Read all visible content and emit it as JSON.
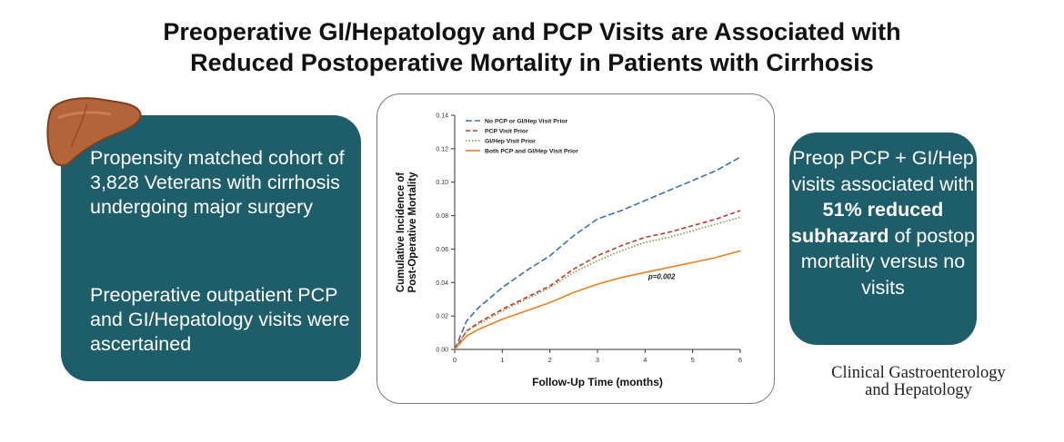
{
  "title": {
    "line1": "Preoperative GI/Hepatology and PCP Visits are Associated with",
    "line2": "Reduced Postoperative Mortality in Patients with Cirrhosis"
  },
  "left_card": {
    "para1": "Propensity matched cohort of 3,828 Veterans with cirrhosis undergoing major surgery",
    "para2": "Preoperative outpatient PCP and GI/Hepatology visits were ascertained"
  },
  "right_card": {
    "pre": "Preop PCP + GI/Hep visits associated with ",
    "bold": "51% reduced subhazard",
    "post": " of postop mortality versus no visits"
  },
  "journal": {
    "line1": "Clinical Gastroenterology",
    "line2": "and Hepatology"
  },
  "icons": {
    "organ": "liver-icon"
  },
  "colors": {
    "card": "#1d5e6a",
    "no_visit": "#3a6fb7",
    "pcp": "#c0392b",
    "gihep": "#7a9a3a",
    "both": "#f07f1e"
  },
  "chart_data": {
    "type": "line",
    "xlabel": "Follow-Up Time (months)",
    "ylabel": [
      "Cumulative Incidence of",
      "Post-Operative Mortality"
    ],
    "xlim": [
      0,
      6
    ],
    "ylim": [
      0,
      0.14
    ],
    "xticks": [
      "0",
      "1",
      "2",
      "3",
      "4",
      "5",
      "6"
    ],
    "yticks": [
      "0.00",
      "0.02",
      "0.04",
      "0.06",
      "0.08",
      "0.10",
      "0.12",
      "0.14"
    ],
    "annotation": "p=0.002",
    "legend_position": "top-left",
    "x": [
      0,
      0.25,
      0.5,
      0.75,
      1,
      1.5,
      2,
      2.5,
      3,
      3.5,
      4,
      4.5,
      5,
      5.5,
      6
    ],
    "series": [
      {
        "name": "No PCP or GI/Hep Visit Prior",
        "color": "#3a6fb7",
        "dash": "7,3",
        "values": [
          0,
          0.017,
          0.025,
          0.031,
          0.037,
          0.047,
          0.056,
          0.068,
          0.078,
          0.083,
          0.089,
          0.095,
          0.101,
          0.107,
          0.115
        ]
      },
      {
        "name": "PCP Visit Prior",
        "color": "#c0392b",
        "dash": "5,3",
        "values": [
          0,
          0.011,
          0.016,
          0.02,
          0.024,
          0.031,
          0.038,
          0.048,
          0.056,
          0.062,
          0.067,
          0.07,
          0.074,
          0.078,
          0.083
        ]
      },
      {
        "name": "GI/Hep Visit Prior",
        "color": "#7a9a3a",
        "dash": "1.5,2",
        "values": [
          0,
          0.011,
          0.015,
          0.019,
          0.023,
          0.03,
          0.037,
          0.046,
          0.053,
          0.059,
          0.064,
          0.067,
          0.071,
          0.075,
          0.079
        ]
      },
      {
        "name": "Both PCP and GI/Hep Visit Prior",
        "color": "#f07f1e",
        "dash": "",
        "values": [
          0,
          0.008,
          0.012,
          0.015,
          0.018,
          0.023,
          0.028,
          0.034,
          0.039,
          0.043,
          0.046,
          0.049,
          0.052,
          0.055,
          0.059
        ]
      }
    ]
  }
}
